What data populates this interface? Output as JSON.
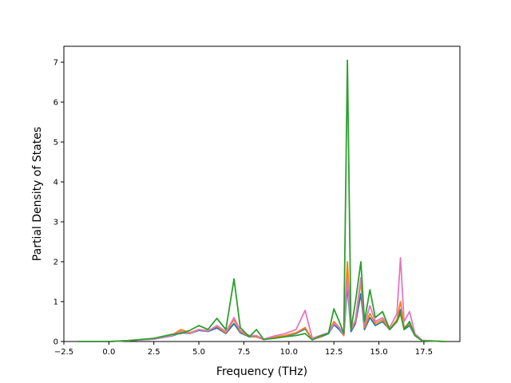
{
  "chart_data": {
    "type": "line",
    "title": "",
    "xlabel": "Frequency (THz)",
    "ylabel": "Partial Density of States",
    "xlim": [
      -2.5,
      19.5
    ],
    "ylim": [
      0,
      7.4
    ],
    "xticks": [
      -2.5,
      0.0,
      2.5,
      5.0,
      7.5,
      10.0,
      12.5,
      15.0,
      17.5
    ],
    "xtick_labels": [
      "−2.5",
      "0.0",
      "2.5",
      "5.0",
      "7.5",
      "10.0",
      "12.5",
      "15.0",
      "17.5"
    ],
    "yticks": [
      0,
      1,
      2,
      3,
      4,
      5,
      6,
      7
    ],
    "ytick_labels": [
      "0",
      "1",
      "2",
      "3",
      "4",
      "5",
      "6",
      "7"
    ],
    "grid": false,
    "legend": "none",
    "series": [
      {
        "color": "#1f77b4",
        "x": [
          -1.7,
          0.0,
          1.0,
          2.5,
          3.5,
          4.0,
          4.5,
          5.0,
          5.5,
          6.0,
          6.5,
          6.95,
          7.3,
          7.8,
          8.2,
          8.6,
          9.2,
          9.8,
          10.4,
          10.9,
          11.3,
          11.8,
          12.2,
          12.5,
          12.8,
          13.05,
          13.25,
          13.45,
          13.7,
          14.0,
          14.2,
          14.5,
          14.8,
          15.2,
          15.6,
          16.0,
          16.2,
          16.4,
          16.7,
          17.0,
          17.4,
          18.7
        ],
        "y": [
          0,
          0,
          0.02,
          0.06,
          0.14,
          0.22,
          0.2,
          0.28,
          0.25,
          0.34,
          0.2,
          0.45,
          0.22,
          0.12,
          0.12,
          0.05,
          0.1,
          0.14,
          0.2,
          0.32,
          0.05,
          0.12,
          0.2,
          0.42,
          0.3,
          0.15,
          1.4,
          0.25,
          0.45,
          1.2,
          0.3,
          0.6,
          0.4,
          0.5,
          0.3,
          0.5,
          0.8,
          0.3,
          0.4,
          0.15,
          0.02,
          0
        ]
      },
      {
        "color": "#ff7f0e",
        "x": [
          -1.7,
          0.0,
          1.0,
          2.5,
          3.5,
          4.0,
          4.5,
          5.0,
          5.5,
          6.0,
          6.5,
          6.95,
          7.3,
          7.8,
          8.2,
          8.6,
          9.2,
          9.8,
          10.4,
          10.9,
          11.3,
          11.8,
          12.2,
          12.5,
          12.8,
          13.05,
          13.25,
          13.45,
          13.7,
          14.0,
          14.2,
          14.5,
          14.8,
          15.2,
          15.6,
          16.0,
          16.2,
          16.4,
          16.7,
          17.0,
          17.4,
          18.7
        ],
        "y": [
          0,
          0,
          0.02,
          0.07,
          0.16,
          0.3,
          0.22,
          0.3,
          0.27,
          0.38,
          0.22,
          0.55,
          0.25,
          0.13,
          0.13,
          0.05,
          0.11,
          0.15,
          0.22,
          0.35,
          0.05,
          0.13,
          0.22,
          0.5,
          0.35,
          0.15,
          2.0,
          0.3,
          0.5,
          1.5,
          0.35,
          0.7,
          0.45,
          0.55,
          0.3,
          0.55,
          1.0,
          0.35,
          0.45,
          0.15,
          0.02,
          0
        ]
      },
      {
        "color": "#e377c2",
        "x": [
          -1.7,
          0.0,
          1.0,
          2.5,
          3.5,
          4.0,
          4.5,
          5.0,
          5.5,
          6.0,
          6.5,
          6.95,
          7.3,
          7.8,
          8.2,
          8.6,
          9.2,
          9.8,
          10.4,
          10.9,
          11.3,
          11.8,
          12.2,
          12.5,
          12.8,
          13.05,
          13.25,
          13.45,
          13.7,
          14.0,
          14.2,
          14.5,
          14.8,
          15.2,
          15.6,
          16.0,
          16.2,
          16.4,
          16.7,
          17.0,
          17.4,
          18.7
        ],
        "y": [
          0,
          0,
          0.02,
          0.06,
          0.15,
          0.25,
          0.2,
          0.3,
          0.26,
          0.4,
          0.25,
          0.6,
          0.28,
          0.15,
          0.15,
          0.06,
          0.14,
          0.2,
          0.3,
          0.78,
          0.08,
          0.16,
          0.22,
          0.45,
          0.35,
          0.18,
          1.6,
          0.3,
          0.55,
          1.6,
          0.4,
          0.9,
          0.5,
          0.6,
          0.35,
          0.7,
          2.1,
          0.5,
          0.75,
          0.2,
          0.03,
          0
        ]
      },
      {
        "color": "#2ca02c",
        "x": [
          -1.7,
          0.0,
          1.0,
          2.5,
          3.5,
          4.0,
          4.5,
          5.0,
          5.5,
          6.0,
          6.5,
          6.95,
          7.3,
          7.8,
          8.2,
          8.6,
          9.2,
          9.8,
          10.4,
          10.9,
          11.3,
          11.8,
          12.2,
          12.5,
          12.8,
          13.05,
          13.25,
          13.45,
          13.7,
          14.0,
          14.2,
          14.5,
          14.8,
          15.2,
          15.6,
          16.0,
          16.2,
          16.4,
          16.7,
          17.0,
          17.4,
          18.7
        ],
        "y": [
          0,
          0,
          0.02,
          0.08,
          0.18,
          0.2,
          0.28,
          0.4,
          0.3,
          0.58,
          0.3,
          1.57,
          0.35,
          0.12,
          0.3,
          0.05,
          0.08,
          0.12,
          0.15,
          0.2,
          0.04,
          0.15,
          0.2,
          0.82,
          0.5,
          0.2,
          7.05,
          0.3,
          1.0,
          2.0,
          0.5,
          1.3,
          0.6,
          0.75,
          0.3,
          0.5,
          0.7,
          0.3,
          0.5,
          0.15,
          0.02,
          0
        ]
      }
    ]
  }
}
